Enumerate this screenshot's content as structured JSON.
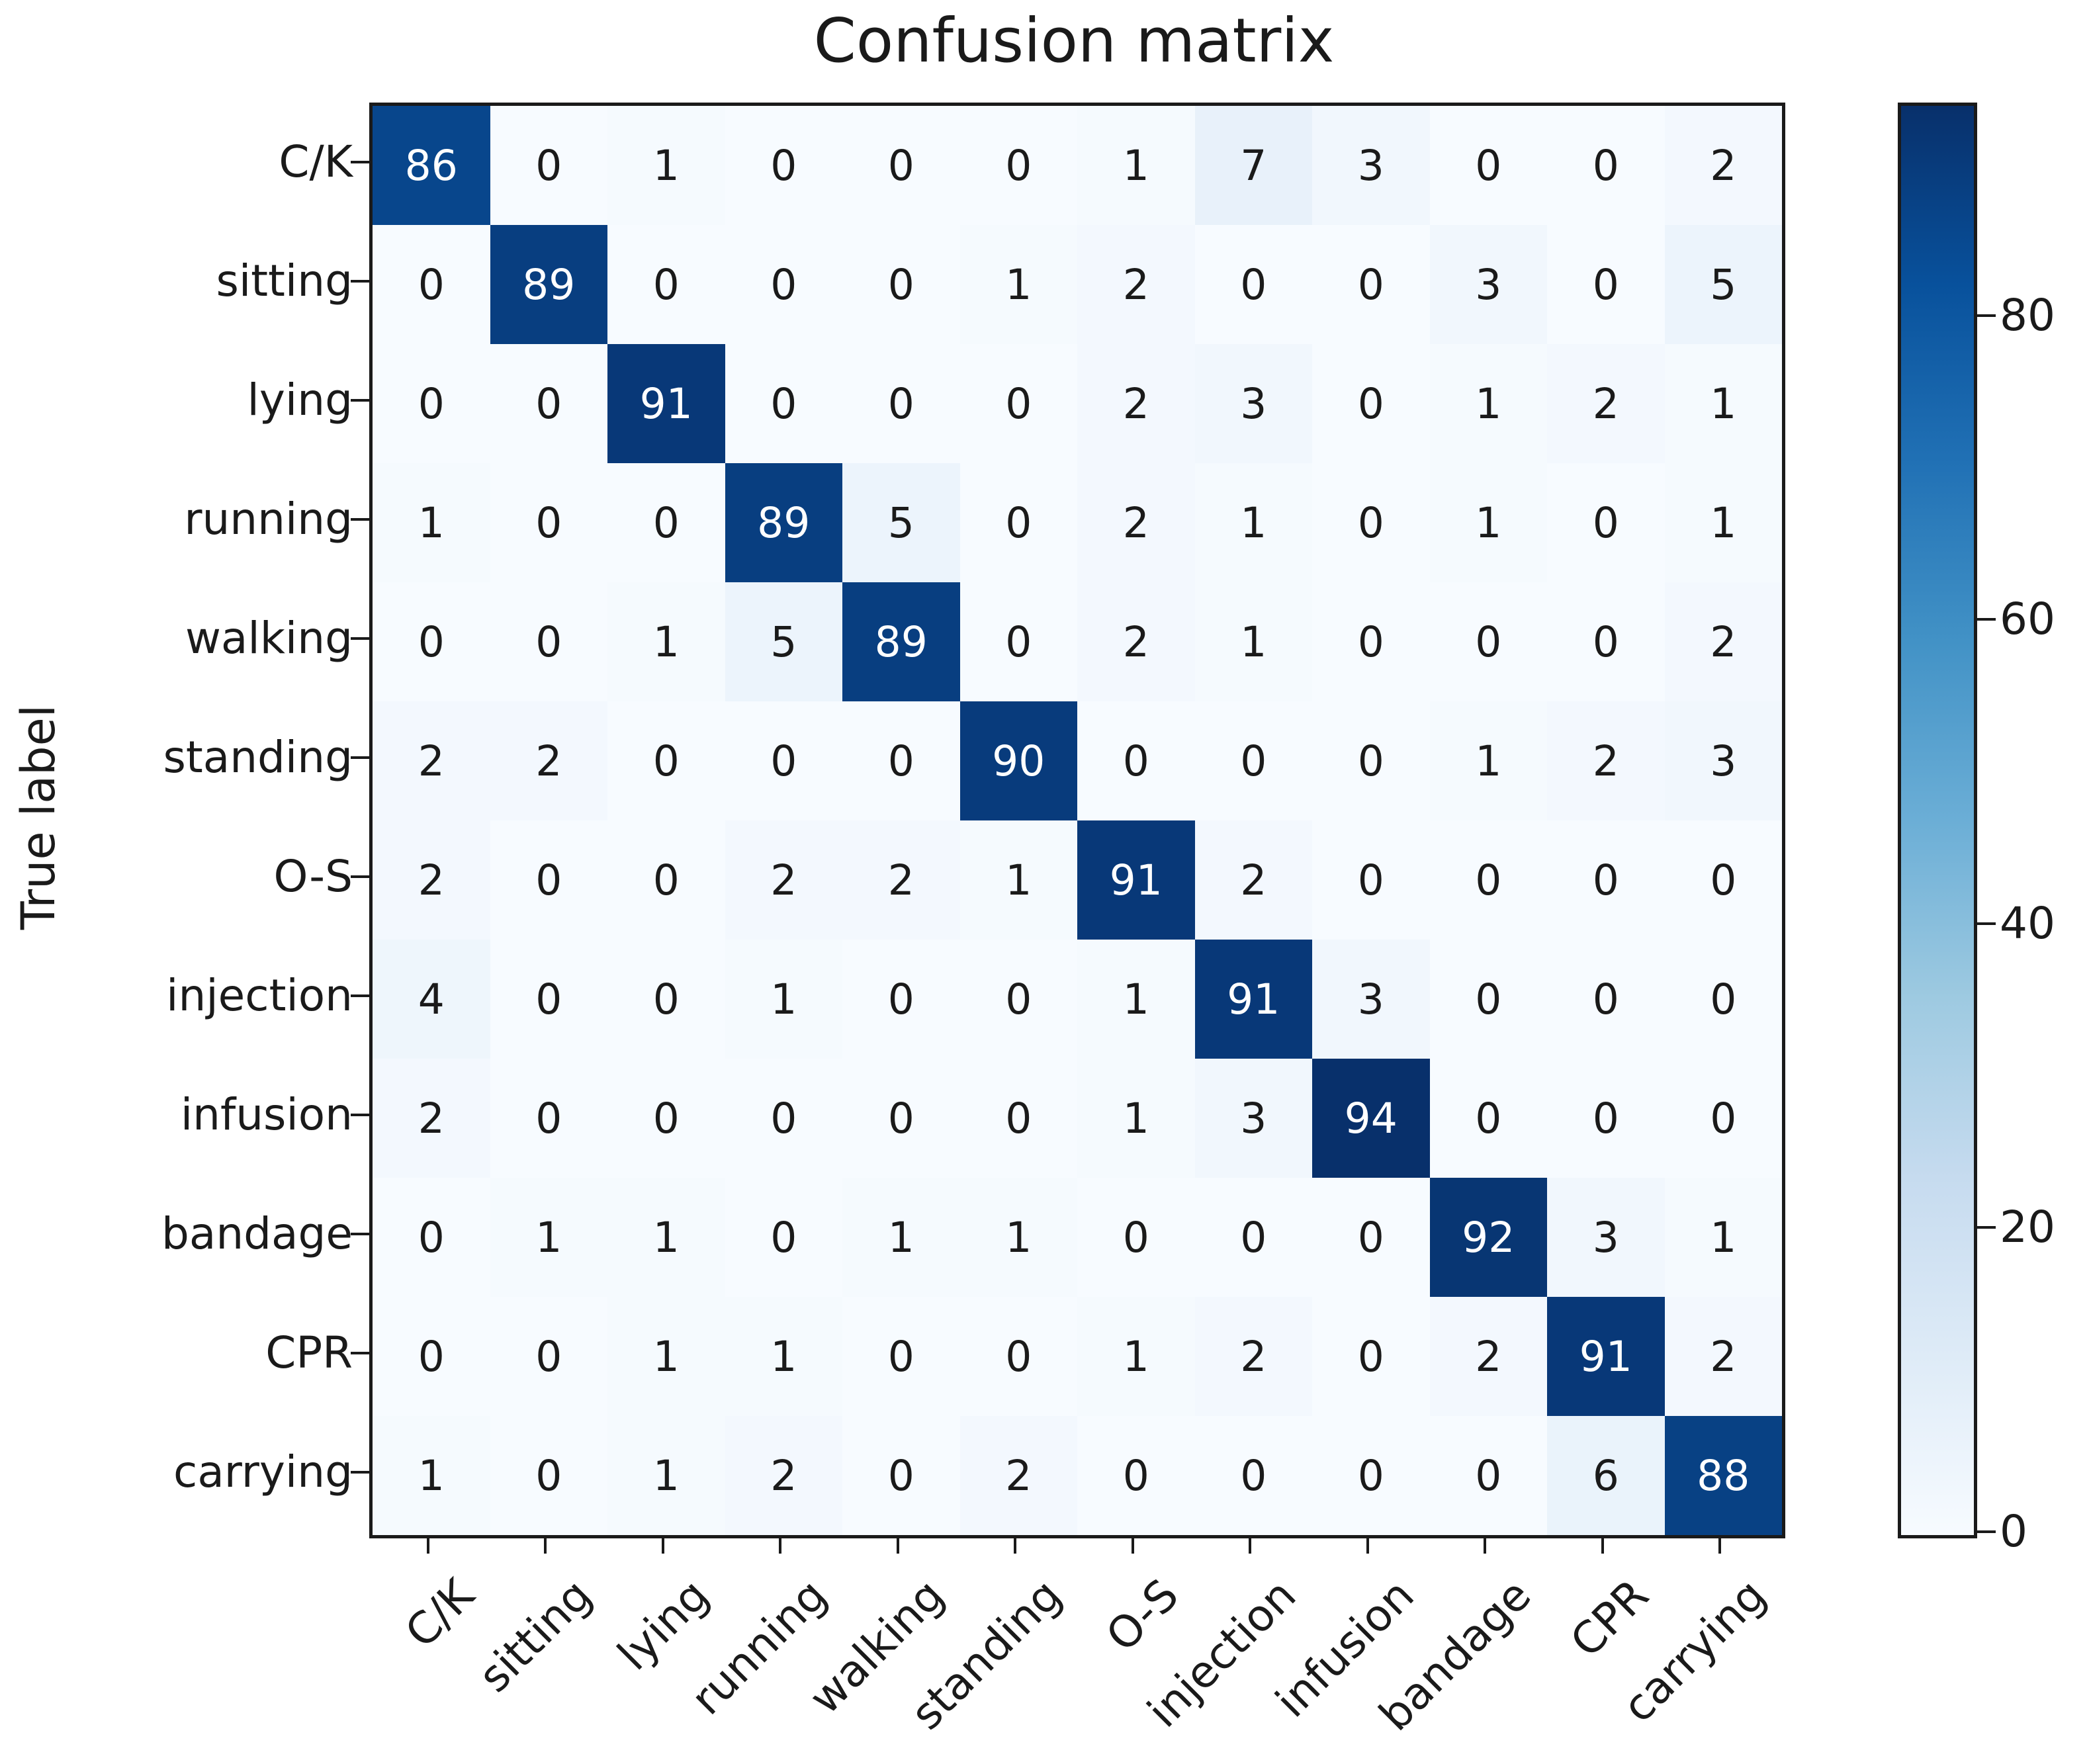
{
  "chart_data": {
    "type": "heatmap",
    "title": "Confusion matrix",
    "xlabel": "",
    "ylabel": "True label",
    "categories": [
      "C/K",
      "sitting",
      "lying",
      "running",
      "walking",
      "standing",
      "O-S",
      "injection",
      "infusion",
      "bandage",
      "CPR",
      "carrying"
    ],
    "matrix": [
      [
        86,
        0,
        1,
        0,
        0,
        0,
        1,
        7,
        3,
        0,
        0,
        2
      ],
      [
        0,
        89,
        0,
        0,
        0,
        1,
        2,
        0,
        0,
        3,
        0,
        5
      ],
      [
        0,
        0,
        91,
        0,
        0,
        0,
        2,
        3,
        0,
        1,
        2,
        1
      ],
      [
        1,
        0,
        0,
        89,
        5,
        0,
        2,
        1,
        0,
        1,
        0,
        1
      ],
      [
        0,
        0,
        1,
        5,
        89,
        0,
        2,
        1,
        0,
        0,
        0,
        2
      ],
      [
        2,
        2,
        0,
        0,
        0,
        90,
        0,
        0,
        0,
        1,
        2,
        3
      ],
      [
        2,
        0,
        0,
        2,
        2,
        1,
        91,
        2,
        0,
        0,
        0,
        0
      ],
      [
        4,
        0,
        0,
        1,
        0,
        0,
        1,
        91,
        3,
        0,
        0,
        0
      ],
      [
        2,
        0,
        0,
        0,
        0,
        0,
        1,
        3,
        94,
        0,
        0,
        0
      ],
      [
        0,
        1,
        1,
        0,
        1,
        1,
        0,
        0,
        0,
        92,
        3,
        1
      ],
      [
        0,
        0,
        1,
        1,
        0,
        0,
        1,
        2,
        0,
        2,
        91,
        2
      ],
      [
        1,
        0,
        1,
        2,
        0,
        2,
        0,
        0,
        0,
        0,
        6,
        88
      ]
    ],
    "vmin": 0,
    "vmax": 94,
    "colorbar_ticks": [
      0,
      20,
      40,
      60,
      80
    ],
    "colormap_name": "Blues",
    "colormap_stops": [
      "#f7fbff",
      "#deebf7",
      "#c6dbef",
      "#9ecae1",
      "#6baed6",
      "#4292c6",
      "#2171b5",
      "#08519c",
      "#08306b"
    ],
    "cell_text_light": "#ffffff",
    "cell_text_dark": "#1a1a1a",
    "axis_color": "#1a1a1a",
    "legend_position": "right-colorbar",
    "grid": false
  }
}
